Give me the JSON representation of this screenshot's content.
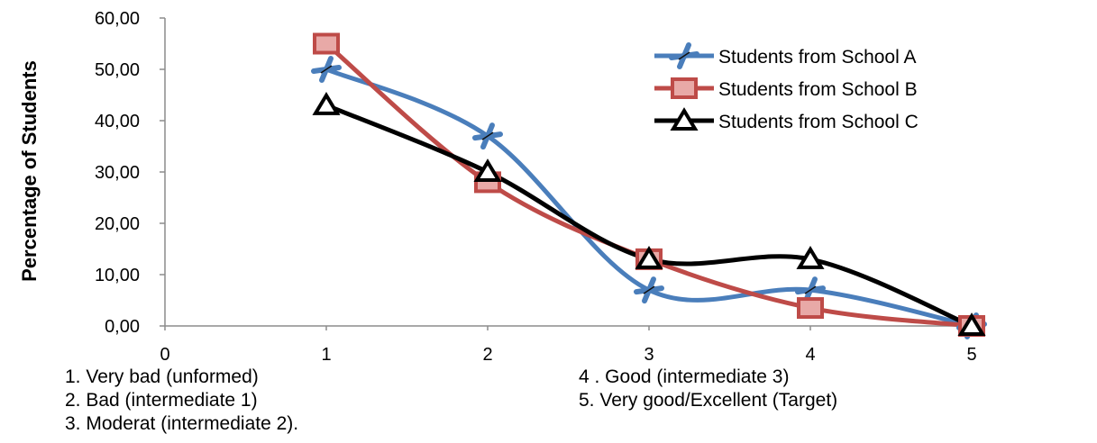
{
  "chart_data": {
    "type": "line",
    "ylabel": "Percentage of Students",
    "xlim": [
      0,
      5
    ],
    "ylim": [
      0,
      60
    ],
    "x_ticks": [
      "0",
      "1",
      "2",
      "3",
      "4",
      "5"
    ],
    "y_ticks": [
      "0,00",
      "10,00",
      "20,00",
      "30,00",
      "40,00",
      "50,00",
      "60,00"
    ],
    "grid": false,
    "legend_position": "top-right",
    "x": [
      1,
      2,
      3,
      4,
      5
    ],
    "series": [
      {
        "name": "Students from School A",
        "color": "#4A7EBB",
        "marker": "x-star",
        "values": [
          50,
          37,
          7,
          7,
          0
        ]
      },
      {
        "name": "Students from School B",
        "color": "#BE4B48",
        "marker": "square",
        "values": [
          55,
          28,
          13,
          3.5,
          0
        ]
      },
      {
        "name": "Students from School C",
        "color": "#000000",
        "marker": "triangle",
        "values": [
          43,
          30,
          13,
          13,
          0
        ]
      }
    ]
  },
  "notes": {
    "n1": "1. Very bad (unformed)",
    "n2": "2. Bad (intermediate 1)",
    "n3": "3. Moderat (intermediate 2).",
    "n4": "4 .  Good (intermediate 3)",
    "n5": "5.  Very good/Excellent (Target)"
  }
}
